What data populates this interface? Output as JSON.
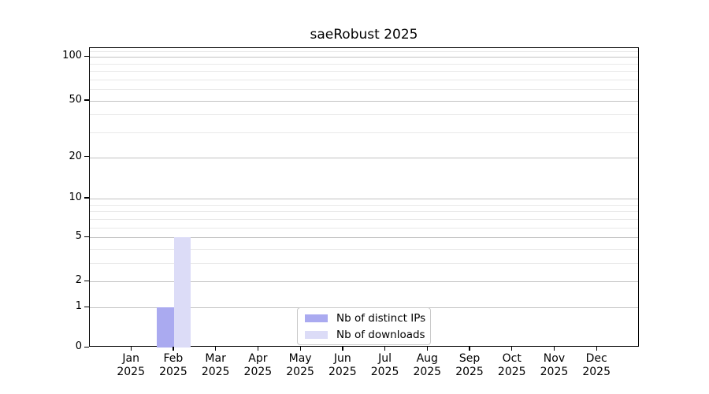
{
  "title": "saeRobust 2025",
  "chart_data": {
    "type": "bar",
    "title": "saeRobust 2025",
    "categories": [
      "Jan 2025",
      "Feb 2025",
      "Mar 2025",
      "Apr 2025",
      "May 2025",
      "Jun 2025",
      "Jul 2025",
      "Aug 2025",
      "Sep 2025",
      "Oct 2025",
      "Nov 2025",
      "Dec 2025"
    ],
    "series": [
      {
        "name": "Nb of distinct IPs",
        "color": "#aaaaf0",
        "values": [
          0,
          1,
          0,
          0,
          0,
          0,
          0,
          0,
          0,
          0,
          0,
          0
        ]
      },
      {
        "name": "Nb of downloads",
        "color": "#dcdcf7",
        "values": [
          0,
          5,
          0,
          0,
          0,
          0,
          0,
          0,
          0,
          0,
          0,
          0
        ]
      }
    ],
    "xlabel": "",
    "ylabel": "",
    "yscale": "log(1+y)",
    "ylim": [
      0,
      115
    ],
    "y_major_ticks": [
      0,
      1,
      2,
      5,
      10,
      20,
      50,
      100
    ],
    "y_minor_gridlines": [
      3,
      4,
      6,
      7,
      8,
      9,
      30,
      40,
      60,
      70,
      80,
      90,
      110
    ],
    "grid": "horizontal",
    "legend_position": "lower center"
  },
  "legend": {
    "items": [
      {
        "label": "Nb of distinct IPs",
        "color": "#aaaaf0"
      },
      {
        "label": "Nb of downloads",
        "color": "#dcdcf7"
      }
    ]
  },
  "colors": {
    "background": "#ffffff",
    "axis": "#000000",
    "grid_major": "#c2c2c2",
    "grid_minor": "#e9e9e9",
    "legend_border": "#c9c9c9"
  }
}
